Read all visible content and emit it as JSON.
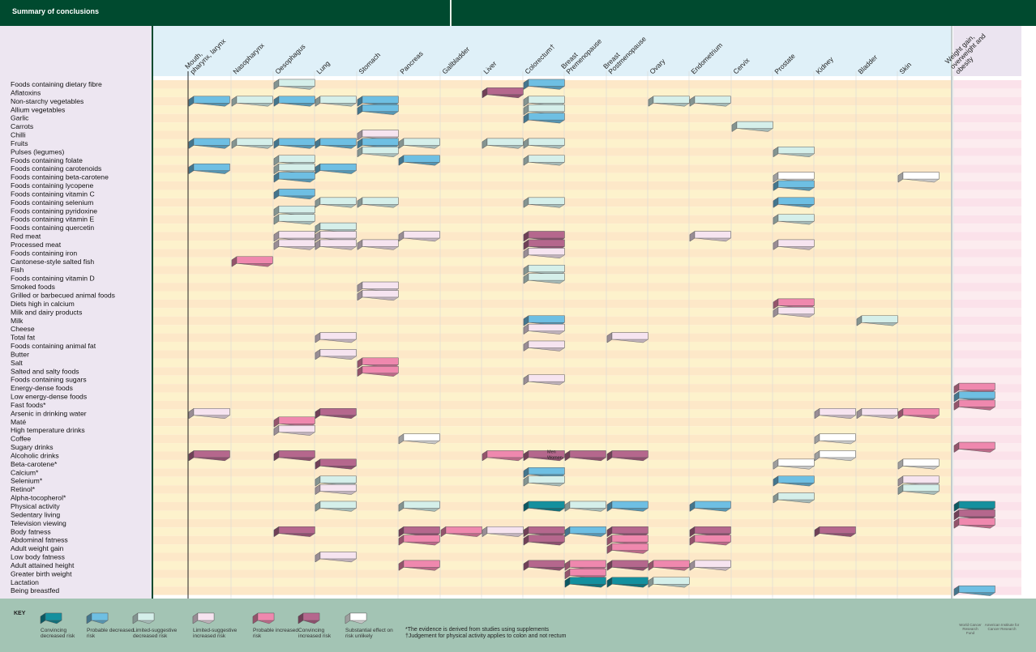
{
  "page": {
    "title": "Summary of conclusions",
    "key_title": "KEY",
    "notes": [
      "*The evidence is derived from studies using supplements",
      "†Judgement for physical activity applies to colon and not rectum"
    ],
    "logos": [
      "World Cancer Research Fund",
      "American Institute for Cancer Research"
    ]
  },
  "legend": [
    {
      "id": "CD",
      "label": "Convincing decreased risk",
      "color": "#14909e"
    },
    {
      "id": "PD",
      "label": "Probable decreased risk",
      "color": "#6ebfe3"
    },
    {
      "id": "LD",
      "label": "Limited-suggestive decreased risk",
      "color": "#d5efea"
    },
    {
      "id": "LI",
      "label": "Limited-suggestive increased risk",
      "color": "#f6e4f0"
    },
    {
      "id": "PI",
      "label": "Probable increased risk",
      "color": "#ef88ae"
    },
    {
      "id": "CI",
      "label": "Convincing increased risk",
      "color": "#b5678d"
    },
    {
      "id": "SU",
      "label": "Substantial effect on risk unlikely",
      "color": "#ffffff"
    }
  ],
  "chart_data": {
    "type": "table",
    "columns": [
      "Mouth, pharynx, larynx",
      "Nasopharynx",
      "Oesophagus",
      "Lung",
      "Stomach",
      "Pancreas",
      "Gallbladder",
      "Liver",
      "Colorectum†",
      "Breast Premenopause",
      "Breast Postmenopause",
      "Ovary",
      "Endometrium",
      "Cervix",
      "Prostate",
      "Kidney",
      "Bladder",
      "Skin",
      "Weight gain, overweight and obesity"
    ],
    "rows": [
      "Foods containing dietary fibre",
      "Aflatoxins",
      "Non-starchy vegetables",
      "Allium vegetables",
      "Garlic",
      "Carrots",
      "Chilli",
      "Fruits",
      "Pulses (legumes)",
      "Foods containing folate",
      "Foods containing carotenoids",
      "Foods containing beta-carotene",
      "Foods containing lycopene",
      "Foods containing vitamin C",
      "Foods containing selenium",
      "Foods containing pyridoxine",
      "Foods containing vitamin E",
      "Foods containing quercetin",
      "Red meat",
      "Processed meat",
      "Foods containing iron",
      "Cantonese-style salted fish",
      "Fish",
      "Foods containing vitamin D",
      "Smoked foods",
      "Grilled or barbecued animal foods",
      "Diets high in calcium",
      "Milk and dairy products",
      "Milk",
      "Cheese",
      "Total fat",
      "Foods containing animal fat",
      "Butter",
      "Salt",
      "Salted and salty foods",
      "Foods containing sugars",
      "Energy-dense foods",
      "Low energy-dense foods",
      "Fast foods*",
      "Arsenic in drinking water",
      "Maté",
      "High temperature drinks",
      "Coffee",
      "Sugary drinks",
      "Alcoholic drinks",
      "Beta-carotene*",
      "Calcium*",
      "Selenium*",
      "Retinol*",
      "Alpha-tocopherol*",
      "Physical activity",
      "Sedentary living",
      "Television viewing",
      "Body fatness",
      "Abdominal fatness",
      "Adult weight gain",
      "Low body fatness",
      "Adult attained height",
      "Greater birth weight",
      "Lactation",
      "Being breastfed"
    ],
    "judgements": [
      [
        "Foods containing dietary fibre",
        "Oesophagus",
        "LD"
      ],
      [
        "Foods containing dietary fibre",
        "Colorectum†",
        "PD"
      ],
      [
        "Aflatoxins",
        "Liver",
        "CI"
      ],
      [
        "Non-starchy vegetables",
        "Mouth, pharynx, larynx",
        "PD"
      ],
      [
        "Non-starchy vegetables",
        "Nasopharynx",
        "LD"
      ],
      [
        "Non-starchy vegetables",
        "Oesophagus",
        "PD"
      ],
      [
        "Non-starchy vegetables",
        "Lung",
        "LD"
      ],
      [
        "Non-starchy vegetables",
        "Stomach",
        "PD"
      ],
      [
        "Non-starchy vegetables",
        "Colorectum†",
        "LD"
      ],
      [
        "Non-starchy vegetables",
        "Ovary",
        "LD"
      ],
      [
        "Non-starchy vegetables",
        "Endometrium",
        "LD"
      ],
      [
        "Allium vegetables",
        "Stomach",
        "PD"
      ],
      [
        "Allium vegetables",
        "Colorectum†",
        "LD"
      ],
      [
        "Garlic",
        "Colorectum†",
        "PD"
      ],
      [
        "Carrots",
        "Cervix",
        "LD"
      ],
      [
        "Chilli",
        "Stomach",
        "LI"
      ],
      [
        "Fruits",
        "Mouth, pharynx, larynx",
        "PD"
      ],
      [
        "Fruits",
        "Nasopharynx",
        "LD"
      ],
      [
        "Fruits",
        "Oesophagus",
        "PD"
      ],
      [
        "Fruits",
        "Lung",
        "PD"
      ],
      [
        "Fruits",
        "Stomach",
        "PD"
      ],
      [
        "Fruits",
        "Pancreas",
        "LD"
      ],
      [
        "Fruits",
        "Liver",
        "LD"
      ],
      [
        "Fruits",
        "Colorectum†",
        "LD"
      ],
      [
        "Pulses (legumes)",
        "Stomach",
        "LD"
      ],
      [
        "Pulses (legumes)",
        "Prostate",
        "LD"
      ],
      [
        "Foods containing folate",
        "Oesophagus",
        "LD"
      ],
      [
        "Foods containing folate",
        "Pancreas",
        "PD"
      ],
      [
        "Foods containing folate",
        "Colorectum†",
        "LD"
      ],
      [
        "Foods containing carotenoids",
        "Mouth, pharynx, larynx",
        "PD"
      ],
      [
        "Foods containing carotenoids",
        "Oesophagus",
        "LD"
      ],
      [
        "Foods containing carotenoids",
        "Lung",
        "PD"
      ],
      [
        "Foods containing beta-carotene",
        "Oesophagus",
        "PD"
      ],
      [
        "Foods containing beta-carotene",
        "Prostate",
        "SU"
      ],
      [
        "Foods containing beta-carotene",
        "Skin",
        "SU"
      ],
      [
        "Foods containing lycopene",
        "Prostate",
        "PD"
      ],
      [
        "Foods containing vitamin C",
        "Oesophagus",
        "PD"
      ],
      [
        "Foods containing selenium",
        "Lung",
        "LD"
      ],
      [
        "Foods containing selenium",
        "Stomach",
        "LD"
      ],
      [
        "Foods containing selenium",
        "Colorectum†",
        "LD"
      ],
      [
        "Foods containing selenium",
        "Prostate",
        "PD"
      ],
      [
        "Foods containing pyridoxine",
        "Oesophagus",
        "LD"
      ],
      [
        "Foods containing vitamin E",
        "Oesophagus",
        "LD"
      ],
      [
        "Foods containing vitamin E",
        "Prostate",
        "LD"
      ],
      [
        "Foods containing quercetin",
        "Lung",
        "LD"
      ],
      [
        "Red meat",
        "Oesophagus",
        "LI"
      ],
      [
        "Red meat",
        "Lung",
        "LI"
      ],
      [
        "Red meat",
        "Pancreas",
        "LI"
      ],
      [
        "Red meat",
        "Colorectum†",
        "CI"
      ],
      [
        "Red meat",
        "Endometrium",
        "LI"
      ],
      [
        "Processed meat",
        "Oesophagus",
        "LI"
      ],
      [
        "Processed meat",
        "Lung",
        "LI"
      ],
      [
        "Processed meat",
        "Stomach",
        "LI"
      ],
      [
        "Processed meat",
        "Colorectum†",
        "CI"
      ],
      [
        "Processed meat",
        "Prostate",
        "LI"
      ],
      [
        "Foods containing iron",
        "Colorectum†",
        "LI"
      ],
      [
        "Cantonese-style salted fish",
        "Nasopharynx",
        "PI"
      ],
      [
        "Fish",
        "Colorectum†",
        "LD"
      ],
      [
        "Foods containing vitamin D",
        "Colorectum†",
        "LD"
      ],
      [
        "Smoked foods",
        "Stomach",
        "LI"
      ],
      [
        "Grilled or barbecued animal foods",
        "Stomach",
        "LI"
      ],
      [
        "Diets high in calcium",
        "Prostate",
        "PI"
      ],
      [
        "Milk and dairy products",
        "Prostate",
        "LI"
      ],
      [
        "Milk",
        "Colorectum†",
        "PD"
      ],
      [
        "Milk",
        "Bladder",
        "LD"
      ],
      [
        "Cheese",
        "Colorectum†",
        "LI"
      ],
      [
        "Total fat",
        "Lung",
        "LI"
      ],
      [
        "Total fat",
        "Breast Postmenopause",
        "LI"
      ],
      [
        "Foods containing animal fat",
        "Colorectum†",
        "LI"
      ],
      [
        "Butter",
        "Lung",
        "LI"
      ],
      [
        "Salt",
        "Stomach",
        "PI"
      ],
      [
        "Salted and salty foods",
        "Stomach",
        "PI"
      ],
      [
        "Foods containing sugars",
        "Colorectum†",
        "LI"
      ],
      [
        "Energy-dense foods",
        "Weight gain, overweight and obesity",
        "PI"
      ],
      [
        "Low energy-dense foods",
        "Weight gain, overweight and obesity",
        "PD"
      ],
      [
        "Fast foods*",
        "Weight gain, overweight and obesity",
        "PI"
      ],
      [
        "Arsenic in drinking water",
        "Lung",
        "CI"
      ],
      [
        "Arsenic in drinking water",
        "Mouth, pharynx, larynx",
        "LI"
      ],
      [
        "Arsenic in drinking water",
        "Kidney",
        "LI"
      ],
      [
        "Arsenic in drinking water",
        "Bladder",
        "LI"
      ],
      [
        "Arsenic in drinking water",
        "Skin",
        "PI"
      ],
      [
        "Maté",
        "Oesophagus",
        "PI"
      ],
      [
        "High temperature drinks",
        "Oesophagus",
        "LI"
      ],
      [
        "Coffee",
        "Pancreas",
        "SU"
      ],
      [
        "Coffee",
        "Kidney",
        "SU"
      ],
      [
        "Sugary drinks",
        "Weight gain, overweight and obesity",
        "PI"
      ],
      [
        "Alcoholic drinks",
        "Mouth, pharynx, larynx",
        "CI"
      ],
      [
        "Alcoholic drinks",
        "Oesophagus",
        "CI"
      ],
      [
        "Alcoholic drinks",
        "Liver",
        "PI"
      ],
      [
        "Alcoholic drinks",
        "Colorectum†",
        "CI"
      ],
      [
        "Alcoholic drinks",
        "Breast Premenopause",
        "CI"
      ],
      [
        "Alcoholic drinks",
        "Breast Postmenopause",
        "CI"
      ],
      [
        "Alcoholic drinks",
        "Kidney",
        "SU"
      ],
      [
        "Beta-carotene*",
        "Lung",
        "CI"
      ],
      [
        "Beta-carotene*",
        "Prostate",
        "SU"
      ],
      [
        "Beta-carotene*",
        "Skin",
        "SU"
      ],
      [
        "Calcium*",
        "Colorectum†",
        "PD"
      ],
      [
        "Selenium*",
        "Lung",
        "LD"
      ],
      [
        "Selenium*",
        "Colorectum†",
        "LD"
      ],
      [
        "Selenium*",
        "Prostate",
        "PD"
      ],
      [
        "Selenium*",
        "Skin",
        "LI"
      ],
      [
        "Retinol*",
        "Lung",
        "LI"
      ],
      [
        "Retinol*",
        "Skin",
        "LD"
      ],
      [
        "Alpha-tocopherol*",
        "Prostate",
        "LD"
      ],
      [
        "Physical activity",
        "Lung",
        "LD"
      ],
      [
        "Physical activity",
        "Pancreas",
        "LD"
      ],
      [
        "Physical activity",
        "Colorectum†",
        "CD"
      ],
      [
        "Physical activity",
        "Breast Premenopause",
        "LD"
      ],
      [
        "Physical activity",
        "Breast Postmenopause",
        "PD"
      ],
      [
        "Physical activity",
        "Endometrium",
        "PD"
      ],
      [
        "Physical activity",
        "Weight gain, overweight and obesity",
        "CD"
      ],
      [
        "Sedentary living",
        "Weight gain, overweight and obesity",
        "CI"
      ],
      [
        "Television viewing",
        "Weight gain, overweight and obesity",
        "PI"
      ],
      [
        "Body fatness",
        "Oesophagus",
        "CI"
      ],
      [
        "Body fatness",
        "Pancreas",
        "CI"
      ],
      [
        "Body fatness",
        "Gallbladder",
        "PI"
      ],
      [
        "Body fatness",
        "Liver",
        "LI"
      ],
      [
        "Body fatness",
        "Colorectum†",
        "CI"
      ],
      [
        "Body fatness",
        "Breast Premenopause",
        "PD"
      ],
      [
        "Body fatness",
        "Breast Postmenopause",
        "CI"
      ],
      [
        "Body fatness",
        "Endometrium",
        "CI"
      ],
      [
        "Body fatness",
        "Kidney",
        "CI"
      ],
      [
        "Abdominal fatness",
        "Pancreas",
        "PI"
      ],
      [
        "Abdominal fatness",
        "Colorectum†",
        "CI"
      ],
      [
        "Abdominal fatness",
        "Breast Postmenopause",
        "PI"
      ],
      [
        "Abdominal fatness",
        "Endometrium",
        "PI"
      ],
      [
        "Adult weight gain",
        "Breast Postmenopause",
        "PI"
      ],
      [
        "Low body fatness",
        "Lung",
        "LI"
      ],
      [
        "Adult attained height",
        "Pancreas",
        "PI"
      ],
      [
        "Adult attained height",
        "Colorectum†",
        "CI"
      ],
      [
        "Adult attained height",
        "Breast Premenopause",
        "PI"
      ],
      [
        "Adult attained height",
        "Breast Postmenopause",
        "CI"
      ],
      [
        "Adult attained height",
        "Ovary",
        "PI"
      ],
      [
        "Adult attained height",
        "Endometrium",
        "LI"
      ],
      [
        "Greater birth weight",
        "Breast Premenopause",
        "PI"
      ],
      [
        "Lactation",
        "Breast Premenopause",
        "CD"
      ],
      [
        "Lactation",
        "Breast Postmenopause",
        "CD"
      ],
      [
        "Lactation",
        "Ovary",
        "LD"
      ],
      [
        "Being breastfed",
        "Weight gain, overweight and obesity",
        "PD"
      ]
    ],
    "annotations": [
      {
        "row": "Alcoholic drinks",
        "column": "Colorectum†",
        "text": "Men"
      },
      {
        "row": "Alcoholic drinks",
        "column": "Colorectum†",
        "text": "Women"
      }
    ]
  }
}
